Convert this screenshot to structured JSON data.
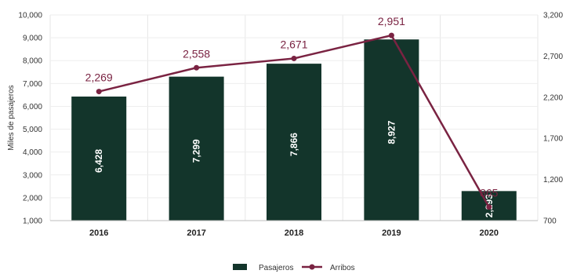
{
  "chart_data": {
    "type": "bar",
    "categories": [
      "2016",
      "2017",
      "2018",
      "2019",
      "2020"
    ],
    "ylabel": "Miles de pasajeros",
    "ylim": [
      1000,
      10000
    ],
    "y_ticks": [
      "1,000",
      "2,000",
      "3,000",
      "4,000",
      "5,000",
      "6,000",
      "7,000",
      "8,000",
      "9,000",
      "10,000"
    ],
    "y2lim": [
      700,
      3200
    ],
    "y2_ticks": [
      "700",
      "1,200",
      "1,700",
      "2,200",
      "2,700",
      "3,200"
    ],
    "grid": true,
    "legend_position": "bottom",
    "series": [
      {
        "name": "Pasajeros",
        "type": "bar",
        "axis": "left",
        "color": "#13352b",
        "values": [
          6428,
          7299,
          7866,
          8927,
          2293
        ],
        "labels": [
          "6,428",
          "7,299",
          "7,866",
          "8,927",
          "2,293"
        ]
      },
      {
        "name": "Arribos",
        "type": "line",
        "axis": "right",
        "color": "#7a2342",
        "values": [
          2269,
          2558,
          2671,
          2951,
          865
        ],
        "labels": [
          "2,269",
          "2,558",
          "2,671",
          "2,951",
          "865"
        ]
      }
    ]
  }
}
